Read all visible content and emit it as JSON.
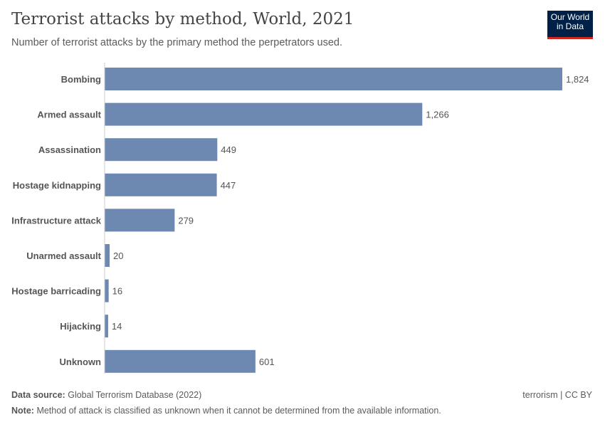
{
  "header": {
    "title": "Terrorist attacks by method, World, 2021",
    "subtitle": "Number of terrorist attacks by the primary method the perpetrators used.",
    "logo": "Our World in Data"
  },
  "chart_data": {
    "type": "bar",
    "orientation": "horizontal",
    "title": "Terrorist attacks by method, World, 2021",
    "categories": [
      "Bombing",
      "Armed assault",
      "Assassination",
      "Hostage kidnapping",
      "Infrastructure attack",
      "Unarmed assault",
      "Hostage barricading",
      "Hijacking",
      "Unknown"
    ],
    "values": [
      1824,
      1266,
      449,
      447,
      279,
      20,
      16,
      14,
      601
    ],
    "value_labels": [
      "1,824",
      "1,266",
      "449",
      "447",
      "279",
      "20",
      "16",
      "14",
      "601"
    ],
    "bar_color": "#6d88b1",
    "grid": false
  },
  "footer": {
    "source_label": "Data source:",
    "source": "Global Terrorism Database (2022)",
    "license": "terrorism | CC BY",
    "note_label": "Note:",
    "note": "Method of attack is classified as unknown when it cannot be determined from the available information."
  }
}
